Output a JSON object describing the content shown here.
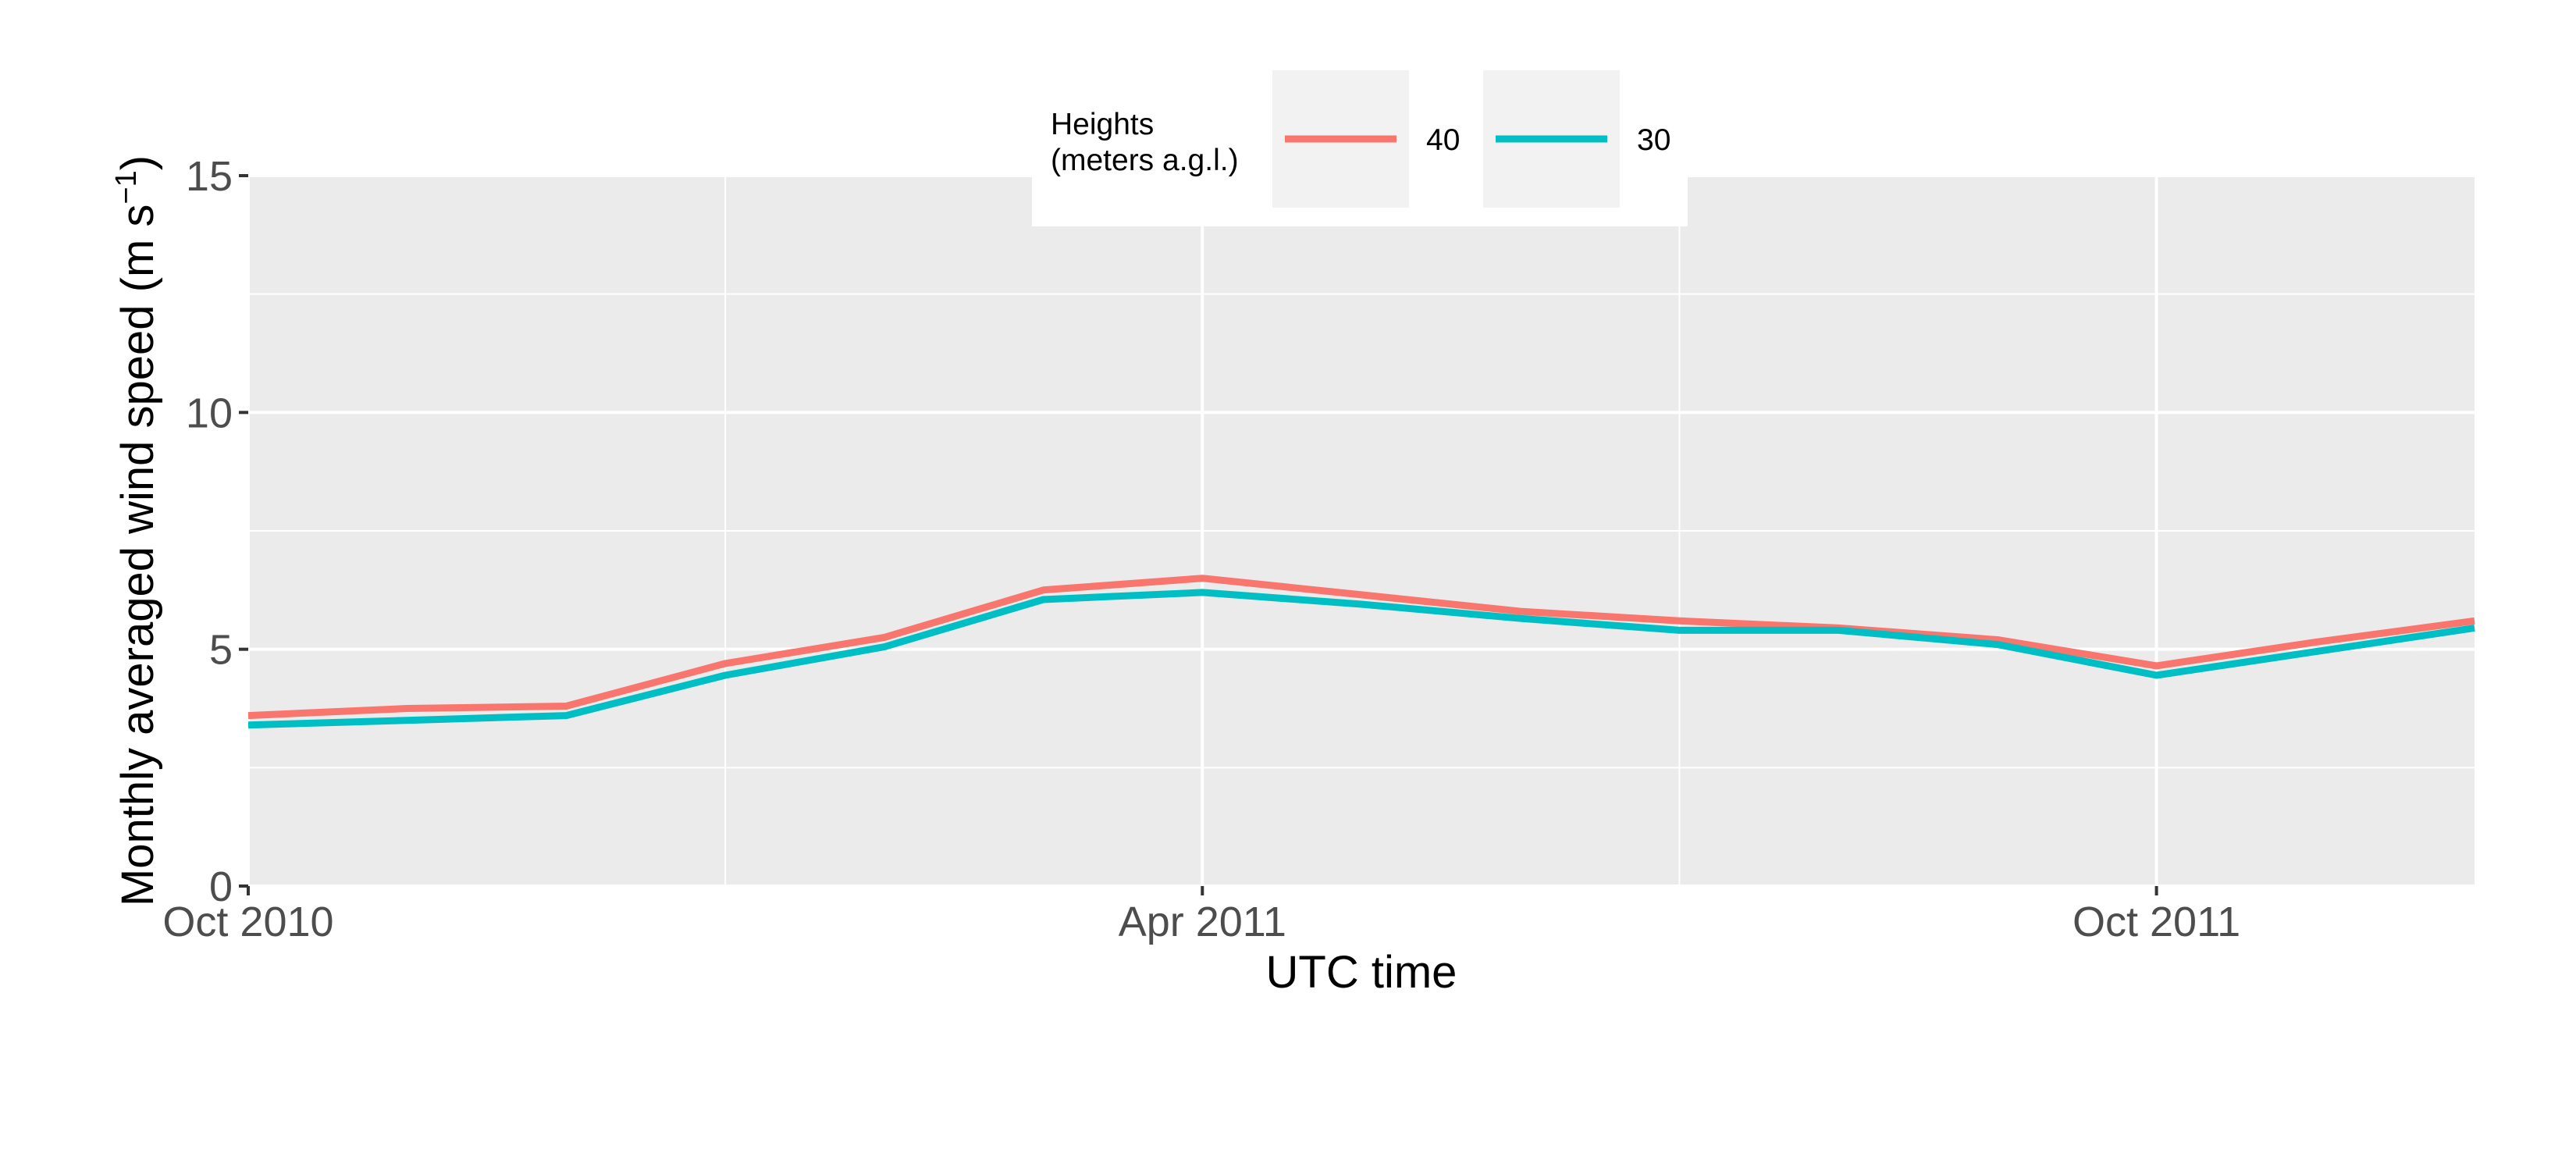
{
  "chart_data": {
    "type": "line",
    "title": "",
    "xlabel": "UTC time",
    "ylabel": "Monthly averaged wind speed (m s",
    "ylabel_superscript": "−1",
    "ylabel_suffix": ")",
    "x": [
      "2010-10",
      "2010-11",
      "2010-12",
      "2011-01",
      "2011-02",
      "2011-03",
      "2011-04",
      "2011-05",
      "2011-06",
      "2011-07",
      "2011-08",
      "2011-09",
      "2011-10",
      "2011-11",
      "2011-12"
    ],
    "xlim": [
      "2010-10",
      "2011-12"
    ],
    "ylim": [
      0,
      15
    ],
    "x_ticks": [
      {
        "value": "2010-10",
        "label": "Oct 2010"
      },
      {
        "value": "2011-04",
        "label": "Apr 2011"
      },
      {
        "value": "2011-10",
        "label": "Oct 2011"
      }
    ],
    "x_minor_ticks": [
      "2011-01",
      "2011-07"
    ],
    "y_ticks": [
      0,
      5,
      10,
      15
    ],
    "y_minor_ticks": [
      2.5,
      7.5,
      12.5
    ],
    "grid": true,
    "panel_background": "#ebebeb",
    "legend": {
      "title_line1": "Heights",
      "title_line2": "(meters a.g.l.)",
      "placement": "top"
    },
    "series": [
      {
        "name": "40",
        "color": "#f8766d",
        "values": [
          3.6,
          3.75,
          3.8,
          4.7,
          5.25,
          6.25,
          6.5,
          6.15,
          5.8,
          5.6,
          5.45,
          5.2,
          4.65,
          5.15,
          5.6
        ]
      },
      {
        "name": "30",
        "color": "#00bfc4",
        "values": [
          3.4,
          3.5,
          3.6,
          4.45,
          5.05,
          6.05,
          6.2,
          5.95,
          5.65,
          5.4,
          5.4,
          5.1,
          4.45,
          4.95,
          5.45
        ]
      }
    ]
  }
}
